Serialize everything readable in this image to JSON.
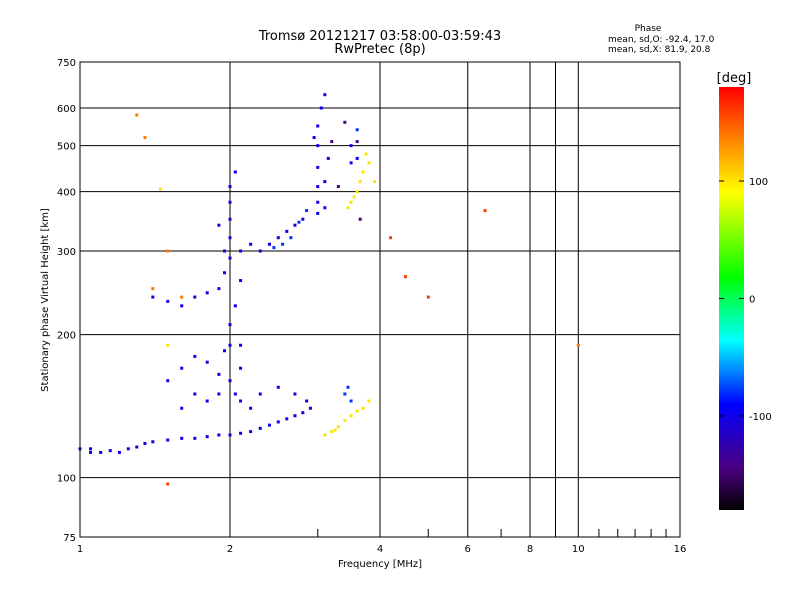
{
  "header": {
    "title_line1": "Tromsø 20121217 03:58:00-03:59:43",
    "title_line2": "RwPretec (8p)"
  },
  "stats": {
    "label": "Phase",
    "line_o": "mean, sd,O: -92.4, 17.0",
    "line_x": "mean, sd,X:  81.9, 20.8"
  },
  "colorbar": {
    "label": "[deg]",
    "min": -180,
    "max": 180,
    "tick_labels": [
      "100",
      "0",
      "-100"
    ],
    "tick_values": [
      100,
      0,
      -100
    ]
  },
  "chart_data": {
    "type": "scatter",
    "xlabel": "Frequency [MHz]",
    "ylabel": "Stationary phase Virtual Height [km]",
    "xscale": "log",
    "yscale": "log",
    "xlim": [
      1,
      16
    ],
    "ylim": [
      75,
      750
    ],
    "x_ticks": [
      1,
      2,
      4,
      6,
      8,
      10,
      16
    ],
    "x_tick_labels": [
      "1",
      "2",
      "4",
      "6",
      "8",
      "10",
      "16"
    ],
    "y_ticks": [
      75,
      100,
      200,
      300,
      400,
      500,
      600,
      750
    ],
    "y_tick_labels": [
      "75",
      "100",
      "200",
      "300",
      "400",
      "500",
      "600",
      "750"
    ],
    "grid": true,
    "series": [
      {
        "phase": -100,
        "points": [
          [
            1.05,
            115
          ],
          [
            1.1,
            113
          ],
          [
            1.15,
            114
          ],
          [
            1.2,
            113
          ],
          [
            1.25,
            115
          ],
          [
            1.3,
            116
          ],
          [
            1.35,
            118
          ],
          [
            1.4,
            119
          ],
          [
            1.5,
            120
          ],
          [
            1.6,
            121
          ],
          [
            1.7,
            121
          ],
          [
            1.8,
            122
          ],
          [
            1.9,
            123
          ],
          [
            2.0,
            123
          ],
          [
            2.1,
            124
          ],
          [
            2.2,
            125
          ],
          [
            2.3,
            127
          ],
          [
            2.4,
            129
          ],
          [
            2.5,
            131
          ],
          [
            2.6,
            133
          ],
          [
            2.7,
            135
          ],
          [
            2.8,
            137
          ],
          [
            2.9,
            140
          ],
          [
            1.5,
            160
          ],
          [
            1.6,
            170
          ],
          [
            1.7,
            180
          ],
          [
            1.8,
            175
          ],
          [
            1.9,
            165
          ],
          [
            2.0,
            160
          ],
          [
            2.05,
            150
          ],
          [
            1.6,
            140
          ],
          [
            1.7,
            150
          ],
          [
            1.8,
            145
          ],
          [
            1.9,
            150
          ],
          [
            2.1,
            145
          ],
          [
            2.3,
            150
          ],
          [
            2.5,
            155
          ],
          [
            2.7,
            150
          ],
          [
            2.85,
            145
          ],
          [
            1.4,
            240
          ],
          [
            1.5,
            235
          ],
          [
            1.6,
            230
          ],
          [
            1.7,
            240
          ],
          [
            1.8,
            245
          ],
          [
            1.9,
            250
          ],
          [
            1.95,
            270
          ],
          [
            2.0,
            290
          ],
          [
            2.0,
            320
          ],
          [
            2.0,
            350
          ],
          [
            2.0,
            380
          ],
          [
            2.0,
            410
          ],
          [
            2.05,
            440
          ],
          [
            1.95,
            300
          ],
          [
            1.9,
            340
          ],
          [
            2.1,
            300
          ],
          [
            2.1,
            260
          ],
          [
            2.05,
            230
          ],
          [
            2.0,
            210
          ],
          [
            2.0,
            190
          ],
          [
            1.95,
            185
          ],
          [
            2.1,
            190
          ],
          [
            2.1,
            170
          ],
          [
            2.2,
            310
          ],
          [
            2.3,
            300
          ],
          [
            2.4,
            310
          ],
          [
            2.5,
            320
          ],
          [
            2.6,
            330
          ],
          [
            2.7,
            340
          ],
          [
            2.8,
            350
          ],
          [
            3.0,
            380
          ],
          [
            3.0,
            410
          ],
          [
            3.0,
            450
          ],
          [
            3.0,
            500
          ],
          [
            3.0,
            550
          ],
          [
            3.05,
            600
          ],
          [
            3.1,
            640
          ],
          [
            3.0,
            360
          ],
          [
            3.1,
            370
          ],
          [
            3.1,
            420
          ],
          [
            3.15,
            470
          ],
          [
            2.95,
            520
          ],
          [
            3.5,
            460
          ],
          [
            3.6,
            470
          ],
          [
            3.5,
            500
          ],
          [
            1.0,
            115
          ],
          [
            1.05,
            113
          ],
          [
            2.2,
            140
          ]
        ]
      },
      {
        "phase": -80,
        "points": [
          [
            2.65,
            320
          ],
          [
            2.75,
            345
          ],
          [
            2.85,
            365
          ],
          [
            2.55,
            310
          ],
          [
            2.45,
            305
          ],
          [
            3.5,
            145
          ],
          [
            3.4,
            150
          ],
          [
            3.45,
            155
          ],
          [
            3.6,
            540
          ]
        ]
      },
      {
        "phase": 100,
        "points": [
          [
            3.2,
            125
          ],
          [
            3.3,
            128
          ],
          [
            3.4,
            132
          ],
          [
            3.5,
            135
          ],
          [
            3.6,
            138
          ],
          [
            3.7,
            140
          ],
          [
            3.8,
            145
          ],
          [
            3.1,
            123
          ],
          [
            3.25,
            126
          ],
          [
            3.45,
            370
          ],
          [
            3.5,
            380
          ],
          [
            3.55,
            390
          ],
          [
            3.6,
            400
          ],
          [
            3.65,
            420
          ],
          [
            3.7,
            440
          ],
          [
            3.8,
            460
          ],
          [
            3.9,
            420
          ],
          [
            3.75,
            480
          ],
          [
            1.5,
            190
          ],
          [
            1.45,
            405
          ]
        ]
      },
      {
        "phase": 140,
        "points": [
          [
            1.4,
            250
          ],
          [
            1.5,
            300
          ],
          [
            1.3,
            580
          ],
          [
            1.35,
            520
          ],
          [
            1.6,
            240
          ],
          [
            10.0,
            190
          ]
        ]
      },
      {
        "phase": -140,
        "points": [
          [
            3.6,
            510
          ],
          [
            3.65,
            350
          ],
          [
            3.4,
            560
          ],
          [
            3.2,
            510
          ],
          [
            3.3,
            410
          ]
        ]
      },
      {
        "phase": 160,
        "points": [
          [
            6.5,
            365
          ],
          [
            4.2,
            320
          ],
          [
            5.0,
            240
          ],
          [
            4.5,
            265
          ],
          [
            1.5,
            97
          ]
        ]
      }
    ]
  }
}
